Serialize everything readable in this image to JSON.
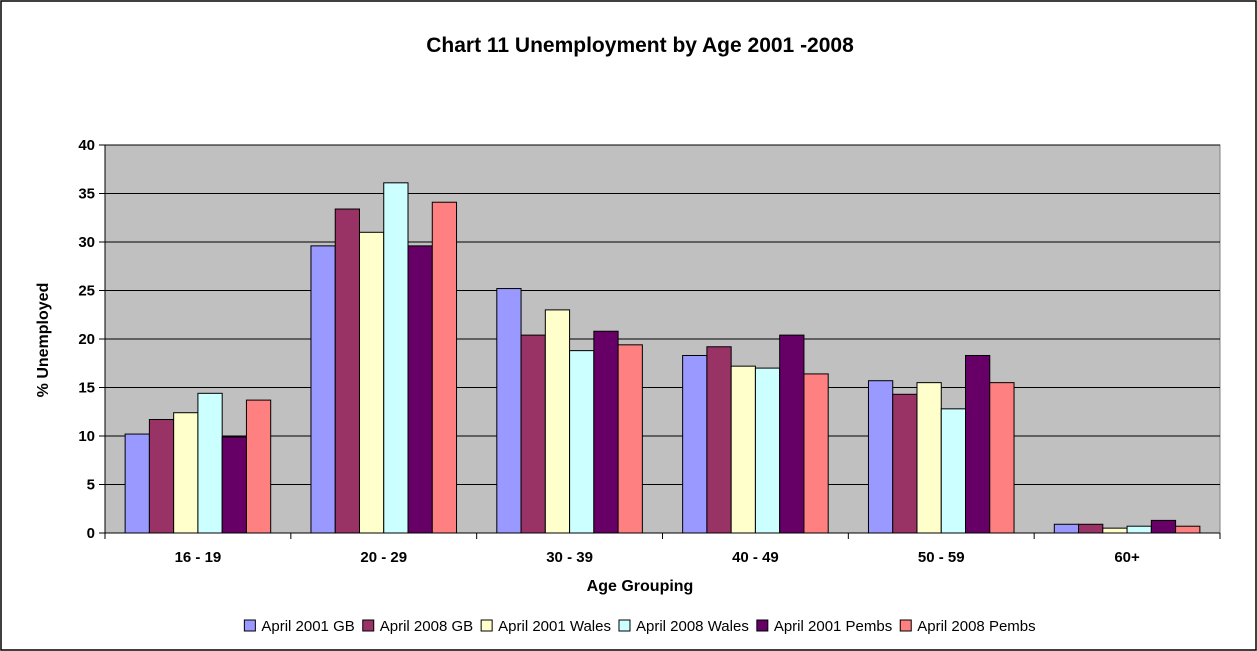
{
  "chart_data": {
    "type": "bar",
    "title": "Chart 11 Unemployment by Age 2001 -2008",
    "xlabel": "Age Grouping",
    "ylabel": "% Unemployed",
    "categories": [
      "16 - 19",
      "20 - 29",
      "30 - 39",
      "40 - 49",
      "50 - 59",
      "60+"
    ],
    "ylim": [
      0,
      40
    ],
    "yticks": [
      0,
      5,
      10,
      15,
      20,
      25,
      30,
      35,
      40
    ],
    "grid": true,
    "legend_position": "bottom",
    "plot_background": "#c0c0c0",
    "series": [
      {
        "name": "April 2001 GB",
        "color": "#9999ff",
        "values": [
          10.2,
          29.6,
          25.2,
          18.3,
          15.7,
          0.9
        ]
      },
      {
        "name": "April 2008 GB",
        "color": "#993366",
        "values": [
          11.7,
          33.4,
          20.4,
          19.2,
          14.3,
          0.9
        ]
      },
      {
        "name": "April 2001 Wales",
        "color": "#ffffcc",
        "values": [
          12.4,
          31.0,
          23.0,
          17.2,
          15.5,
          0.5
        ]
      },
      {
        "name": "April 2008 Wales",
        "color": "#ccffff",
        "values": [
          14.4,
          36.1,
          18.8,
          17.0,
          12.8,
          0.7
        ]
      },
      {
        "name": "April 2001 Pembs",
        "color": "#660066",
        "values": [
          9.9,
          29.6,
          20.8,
          20.4,
          18.3,
          1.3
        ]
      },
      {
        "name": "April 2008 Pembs",
        "color": "#ff8080",
        "values": [
          13.7,
          34.1,
          19.4,
          16.4,
          15.5,
          0.7
        ]
      }
    ]
  }
}
